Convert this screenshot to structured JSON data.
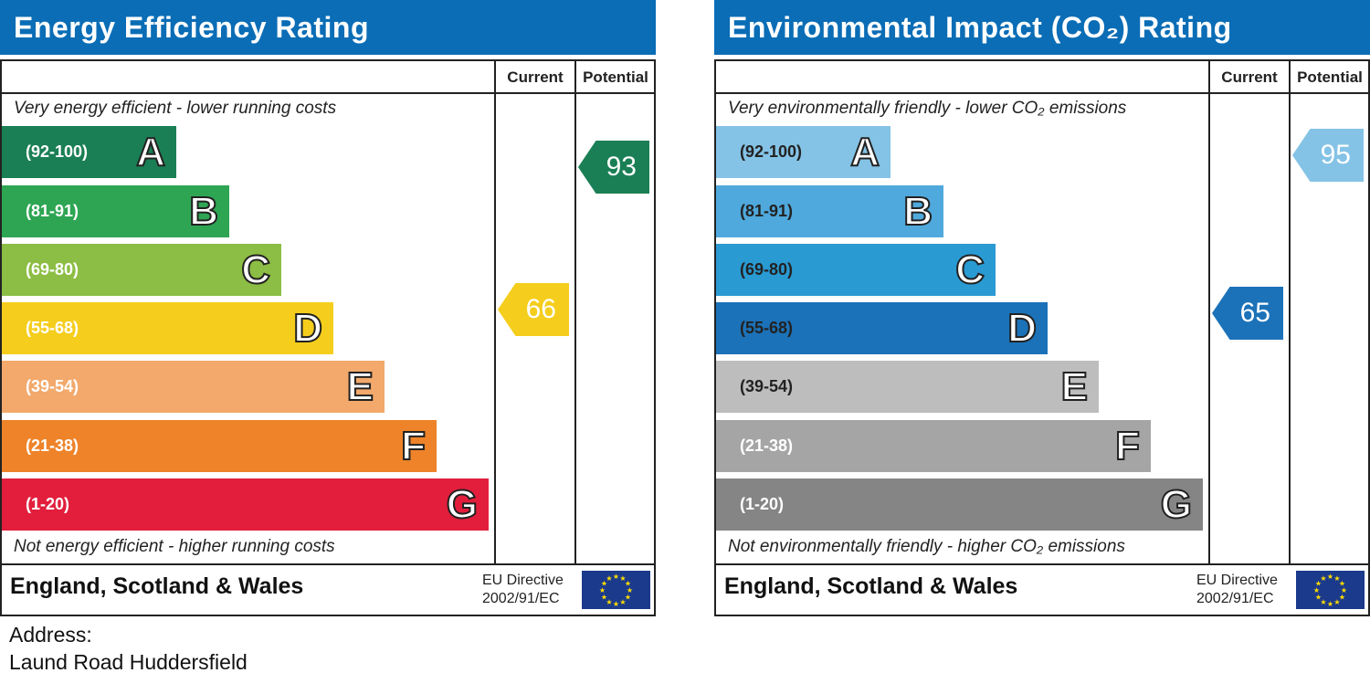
{
  "chart_data": [
    {
      "type": "bar",
      "title": "Energy Efficiency Rating",
      "columns": [
        "Current",
        "Potential"
      ],
      "top_note": "Very energy efficient - lower running costs",
      "bottom_note": "Not energy efficient - higher running costs",
      "categories": [
        "A",
        "B",
        "C",
        "D",
        "E",
        "F",
        "G"
      ],
      "ranges": [
        "(92-100)",
        "(81-91)",
        "(69-80)",
        "(55-68)",
        "(39-54)",
        "(21-38)",
        "(1-20)"
      ],
      "colors": [
        "#1a7f54",
        "#2ea553",
        "#8cbd44",
        "#f5cd1c",
        "#f2a96b",
        "#ee8329",
        "#e21e3c"
      ],
      "current": {
        "value": "66",
        "band": 3,
        "color": "#f5cd1c"
      },
      "potential": {
        "value": "93",
        "band": 0,
        "color": "#1a7f54"
      },
      "region": "England, Scotland & Wales",
      "directive": [
        "EU Directive",
        "2002/91/EC"
      ]
    },
    {
      "type": "bar",
      "title": "Environmental Impact (CO₂) Rating",
      "columns": [
        "Current",
        "Potential"
      ],
      "top_note": "Very environmentally friendly - lower CO₂ emissions",
      "bottom_note": "Not environmentally friendly - higher CO₂ emissions",
      "categories": [
        "A",
        "B",
        "C",
        "D",
        "E",
        "F",
        "G"
      ],
      "ranges": [
        "(92-100)",
        "(81-91)",
        "(69-80)",
        "(55-68)",
        "(39-54)",
        "(21-38)",
        "(1-20)"
      ],
      "colors": [
        "#84c3e6",
        "#4fa9dc",
        "#2a9ad3",
        "#1b72b9",
        "#bdbdbd",
        "#a5a5a5",
        "#858585"
      ],
      "range_text_colors": [
        "#222",
        "#222",
        "#222",
        "#222",
        "#222",
        "#fff",
        "#fff"
      ],
      "current": {
        "value": "65",
        "band": 3,
        "color": "#1b72b9"
      },
      "potential": {
        "value": "95",
        "band": 0,
        "color": "#84c3e6"
      },
      "region": "England, Scotland & Wales",
      "directive": [
        "EU Directive",
        "2002/91/EC"
      ]
    }
  ],
  "address": {
    "label": "Address:",
    "value": "Laund Road Huddersfield"
  }
}
